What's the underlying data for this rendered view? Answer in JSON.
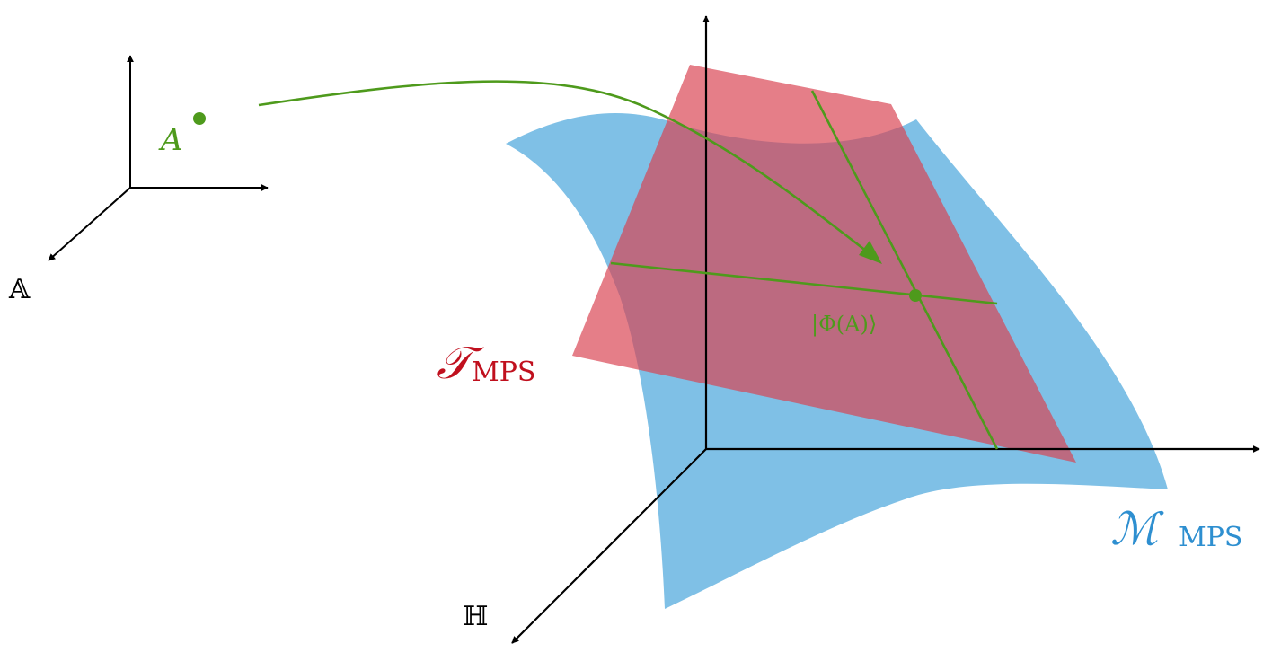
{
  "colors": {
    "green": "#4e9a1c",
    "red": "#c0101e",
    "blue": "#2e8fd0",
    "red_fill": "#d9414f",
    "blue_fill": "#3a9ed9",
    "axes": "#000000"
  },
  "labels": {
    "point_A": "A",
    "space_A": "𝔸",
    "space_H": "ℍ",
    "tangent_main": "𝒯",
    "tangent_sub": "MPS",
    "manifold_main": "ℳ",
    "manifold_sub": "MPS",
    "state_ket": "|Φ(A)⟩"
  }
}
